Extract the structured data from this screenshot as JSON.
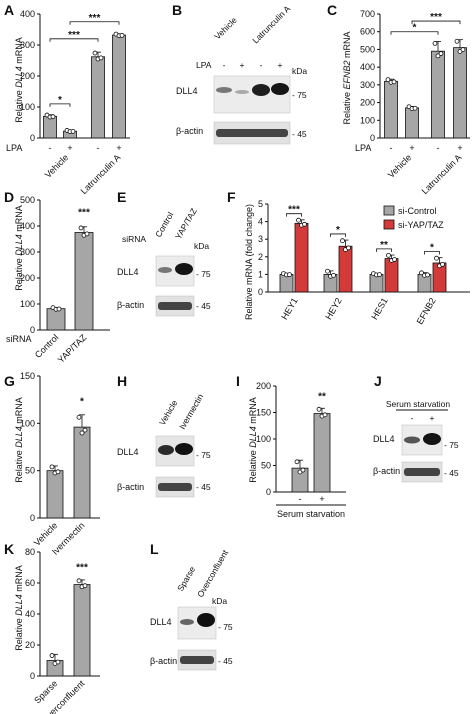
{
  "panels": {
    "A": {
      "letter": "A",
      "ylabel_pre": "Relative ",
      "ylabel_gene": "DLL4",
      "ylabel_post": " mRNA",
      "lpa": "LPA",
      "minus": "-",
      "plus": "+",
      "groups": [
        "Vehicle",
        "Latrunculin A"
      ],
      "sig": [
        "*",
        "***",
        "***"
      ]
    },
    "B": {
      "letter": "B",
      "groups": [
        "Vehicle",
        "Latrunculin A"
      ],
      "lpa": "LPA",
      "minus": "-",
      "plus": "+",
      "kda": "kDa",
      "bands": [
        "DLL4",
        "β-actin"
      ],
      "markers": [
        "- 75",
        "- 45"
      ]
    },
    "C": {
      "letter": "C",
      "ylabel_pre": "Relative ",
      "ylabel_gene": "EFNB2",
      "ylabel_post": " mRNA",
      "lpa": "LPA",
      "minus": "-",
      "plus": "+",
      "groups": [
        "Vehicle",
        "Latrunculin A"
      ],
      "sig": [
        "*",
        "***"
      ]
    },
    "D": {
      "letter": "D",
      "ylabel_pre": "Relative ",
      "ylabel_gene": "DLL4",
      "ylabel_post": " mRNA",
      "sirna": "siRNA",
      "sig": "***"
    },
    "E": {
      "letter": "E",
      "sirna": "siRNA",
      "lanes": [
        "Control",
        "YAP/TAZ"
      ],
      "kda": "kDa",
      "bands": [
        "DLL4",
        "β-actin"
      ],
      "markers": [
        "- 75",
        "- 45"
      ]
    },
    "F": {
      "letter": "F",
      "ylabel": "Relative mRNA (fold change)",
      "sig": [
        "***",
        "*",
        "**",
        "*"
      ]
    },
    "G": {
      "letter": "G",
      "ylabel_pre": "Relative ",
      "ylabel_gene": "DLL4",
      "ylabel_post": " mRNA",
      "sig": "*"
    },
    "H": {
      "letter": "H",
      "lanes": [
        "Vehicle",
        "Ivermectin"
      ],
      "bands": [
        "DLL4",
        "β-actin"
      ],
      "markers": [
        "- 75",
        "- 45"
      ]
    },
    "I": {
      "letter": "I",
      "ylabel_pre": "Relative ",
      "ylabel_gene": "DLL4",
      "ylabel_post": " mRNA",
      "minus": "-",
      "plus": "+",
      "xlabel": "Serum starvation",
      "sig": "**"
    },
    "J": {
      "letter": "J",
      "title": "Serum starvation",
      "minus": "-",
      "plus": "+",
      "bands": [
        "DLL4",
        "β-actin"
      ],
      "markers": [
        "- 75",
        "- 45"
      ]
    },
    "K": {
      "letter": "K",
      "ylabel_pre": "Relative ",
      "ylabel_gene": "DLL4",
      "ylabel_post": " mRNA",
      "sig": "***"
    },
    "L": {
      "letter": "L",
      "lanes": [
        "Sparse",
        "Overconfluent"
      ],
      "kda": "kDa",
      "bands": [
        "DLL4",
        "β-actin"
      ],
      "markers": [
        "- 75",
        "- 45"
      ]
    }
  },
  "chart_data": [
    {
      "panel": "A",
      "type": "bar",
      "categories": [
        "Vehicle -",
        "Vehicle +",
        "Latrunculin A -",
        "Latrunculin A +"
      ],
      "values": [
        70,
        22,
        262,
        332
      ],
      "errors": [
        5,
        3,
        15,
        4
      ],
      "ylim": [
        0,
        400
      ],
      "yticks": [
        0,
        100,
        200,
        300,
        400
      ],
      "ylabel": "Relative DLL4 mRNA"
    },
    {
      "panel": "C",
      "type": "bar",
      "categories": [
        "Vehicle -",
        "Vehicle +",
        "Latrunculin A -",
        "Latrunculin A +"
      ],
      "values": [
        320,
        170,
        490,
        510
      ],
      "errors": [
        12,
        8,
        55,
        45
      ],
      "ylim": [
        0,
        700
      ],
      "yticks": [
        0,
        100,
        200,
        300,
        400,
        500,
        600,
        700
      ],
      "ylabel": "Relative EFNB2 mRNA"
    },
    {
      "panel": "D",
      "type": "bar",
      "categories": [
        "Control",
        "YAP/TAZ"
      ],
      "values": [
        82,
        375
      ],
      "errors": [
        5,
        22
      ],
      "ylim": [
        0,
        500
      ],
      "yticks": [
        0,
        100,
        200,
        300,
        400,
        500
      ],
      "ylabel": "Relative DLL4 mRNA"
    },
    {
      "panel": "F",
      "type": "bar",
      "categories": [
        "HEY1",
        "HEY2",
        "HES1",
        "EFNB2"
      ],
      "series": [
        {
          "name": "si-Control",
          "values": [
            1.0,
            1.0,
            1.0,
            1.0
          ],
          "errors": [
            0.05,
            0.2,
            0.05,
            0.1
          ]
        },
        {
          "name": "si-YAP/TAZ",
          "values": [
            3.9,
            2.6,
            1.9,
            1.65
          ],
          "errors": [
            0.2,
            0.35,
            0.2,
            0.3
          ]
        }
      ],
      "ylim": [
        0,
        5
      ],
      "yticks": [
        0,
        1,
        2,
        3,
        4,
        5
      ],
      "ylabel": "Relative mRNA (fold change)",
      "legend": "top-right"
    },
    {
      "panel": "G",
      "type": "bar",
      "categories": [
        "Vehicle",
        "Ivermectin"
      ],
      "values": [
        50,
        96
      ],
      "errors": [
        5,
        13
      ],
      "ylim": [
        0,
        150
      ],
      "yticks": [
        0,
        50,
        100,
        150
      ],
      "ylabel": "Relative DLL4 mRNA"
    },
    {
      "panel": "I",
      "type": "bar",
      "categories": [
        "-",
        "+"
      ],
      "values": [
        45,
        148
      ],
      "errors": [
        15,
        10
      ],
      "ylim": [
        0,
        200
      ],
      "yticks": [
        0,
        50,
        100,
        150,
        200
      ],
      "ylabel": "Relative DLL4 mRNA",
      "xlabel": "Serum starvation"
    },
    {
      "panel": "K",
      "type": "bar",
      "categories": [
        "Sparse",
        "Overconfluent"
      ],
      "values": [
        10,
        59
      ],
      "errors": [
        4,
        3
      ],
      "ylim": [
        0,
        80
      ],
      "yticks": [
        0,
        20,
        40,
        60,
        80
      ],
      "ylabel": "Relative DLL4 mRNA"
    }
  ],
  "colors": {
    "gray_bar": "#a6a6a6",
    "red_bar": "#d43a3a",
    "axis": "#111111",
    "blot_bg": "#eeeeee",
    "blot_band": "#222222"
  }
}
